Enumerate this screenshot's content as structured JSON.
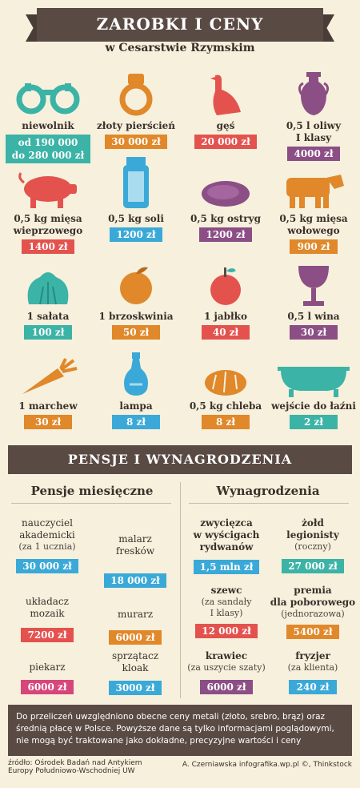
{
  "title": "ZAROBKI I CENY",
  "subtitle": "w Cesarstwie Rzymskim",
  "prices": [
    {
      "label_1": "niewolnik",
      "label_2": "",
      "price_1": "od 190 000",
      "price_2": "do 280 000 zł",
      "color": "#3bb3a6",
      "icon": "handcuffs-icon"
    },
    {
      "label_1": "złoty pierścień",
      "label_2": "",
      "price_1": "30 000 zł",
      "price_2": "",
      "color": "#e0882a",
      "icon": "ring-icon"
    },
    {
      "label_1": "gęś",
      "label_2": "",
      "price_1": "20 000 zł",
      "price_2": "",
      "color": "#e4524e",
      "icon": "goose-icon"
    },
    {
      "label_1": "0,5 l oliwy",
      "label_2": "I klasy",
      "price_1": "4000 zł",
      "price_2": "",
      "color": "#8b4e85",
      "icon": "amphora-icon"
    },
    {
      "label_1": "0,5 kg mięsa",
      "label_2": "wieprzowego",
      "price_1": "1400 zł",
      "price_2": "",
      "color": "#e4524e",
      "icon": "pig-icon"
    },
    {
      "label_1": "0,5 kg soli",
      "label_2": "",
      "price_1": "1200 zł",
      "price_2": "",
      "color": "#3aa9d8",
      "icon": "salt-icon"
    },
    {
      "label_1": "0,5 kg ostryg",
      "label_2": "",
      "price_1": "1200 zł",
      "price_2": "",
      "color": "#8b4e85",
      "icon": "oyster-icon"
    },
    {
      "label_1": "0,5 kg mięsa",
      "label_2": "wołowego",
      "price_1": "900 zł",
      "price_2": "",
      "color": "#e0882a",
      "icon": "cow-icon"
    },
    {
      "label_1": "1 sałata",
      "label_2": "",
      "price_1": "100 zł",
      "price_2": "",
      "color": "#3bb3a6",
      "icon": "lettuce-icon"
    },
    {
      "label_1": "1 brzoskwinia",
      "label_2": "",
      "price_1": "50 zł",
      "price_2": "",
      "color": "#e0882a",
      "icon": "peach-icon"
    },
    {
      "label_1": "1 jabłko",
      "label_2": "",
      "price_1": "40 zł",
      "price_2": "",
      "color": "#e4524e",
      "icon": "apple-icon"
    },
    {
      "label_1": "0,5 l wina",
      "label_2": "",
      "price_1": "30 zł",
      "price_2": "",
      "color": "#8b4e85",
      "icon": "wine-cup-icon"
    },
    {
      "label_1": "1 marchew",
      "label_2": "",
      "price_1": "30 zł",
      "price_2": "",
      "color": "#e0882a",
      "icon": "carrot-icon"
    },
    {
      "label_1": "lampa",
      "label_2": "",
      "price_1": "8 zł",
      "price_2": "",
      "color": "#3aa9d8",
      "icon": "lamp-icon"
    },
    {
      "label_1": "0,5 kg chleba",
      "label_2": "",
      "price_1": "8 zł",
      "price_2": "",
      "color": "#e0882a",
      "icon": "bread-icon"
    },
    {
      "label_1": "wejście do łaźni",
      "label_2": "",
      "price_1": "2 zł",
      "price_2": "",
      "color": "#3bb3a6",
      "icon": "bathtub-icon"
    }
  ],
  "section_title": "PENSJE I WYNAGRODZENIA",
  "col_left": "Pensje miesięczne",
  "col_right": "Wynagrodzenia",
  "pays": [
    {
      "l1": "nauczyciel",
      "l2": "akademicki",
      "s1": "(za 1 ucznia)",
      "s2": "",
      "price": "30 000 zł",
      "color": "#3aa9d8"
    },
    {
      "l1": "malarz",
      "l2": "fresków",
      "s1": "",
      "s2": "",
      "price": "18 000 zł",
      "color": "#3aa9d8"
    },
    {
      "l1": "zwycięzca",
      "l2": "w wyścigach",
      "l3": "rydwanów",
      "s1": "",
      "price": "1,5 mln zł",
      "color": "#3aa9d8"
    },
    {
      "l1": "żołd",
      "l2": "legionisty",
      "s1": "(roczny)",
      "s2": "",
      "price": "27 000 zł",
      "color": "#3bb3a6"
    },
    {
      "l1": "układacz",
      "l2": "mozaik",
      "s1": "",
      "price": "7200 zł",
      "color": "#e4524e"
    },
    {
      "l1": "murarz",
      "l2": "",
      "s1": "",
      "price": "6000 zł",
      "color": "#e0882a"
    },
    {
      "l1": "szewc",
      "l2": "",
      "s1": "(za sandały",
      "s2": "I klasy)",
      "price": "12 000 zł",
      "color": "#e4524e"
    },
    {
      "l1": "premia",
      "l2": "dla poborowego",
      "s1": "(jednorazowa)",
      "s2": "",
      "price": "5400 zł",
      "color": "#e0882a"
    },
    {
      "l1": "piekarz",
      "l2": "",
      "s1": "",
      "price": "6000 zł",
      "color": "#d6467a"
    },
    {
      "l1": "sprzątacz",
      "l2": "kloak",
      "s1": "",
      "price": "3000 zł",
      "color": "#3aa9d8"
    },
    {
      "l1": "krawiec",
      "l2": "",
      "s1": "(za uszycie szaty)",
      "s2": "",
      "price": "6000 zł",
      "color": "#8b4e85"
    },
    {
      "l1": "fryzjer",
      "l2": "",
      "s1": "(za klienta)",
      "s2": "",
      "price": "240 zł",
      "color": "#3aa9d8"
    }
  ],
  "note_1": "Do przeliczeń uwzględniono obecne ceny metali (złoto, srebro, brąz) oraz",
  "note_2": "średnią płacę w Polsce. Powyższe dane są tylko informacjami poglądowymi,",
  "note_3": "nie mogą być traktowane jako dokładne, precyzyjne wartości i ceny",
  "source_1": "źródło: Ośrodek Badań nad Antykiem",
  "source_2": "Europy Południowo-Wschodniej UW",
  "credit": "A. Czerniawska infografika.wp.pl ©, Thinkstock"
}
